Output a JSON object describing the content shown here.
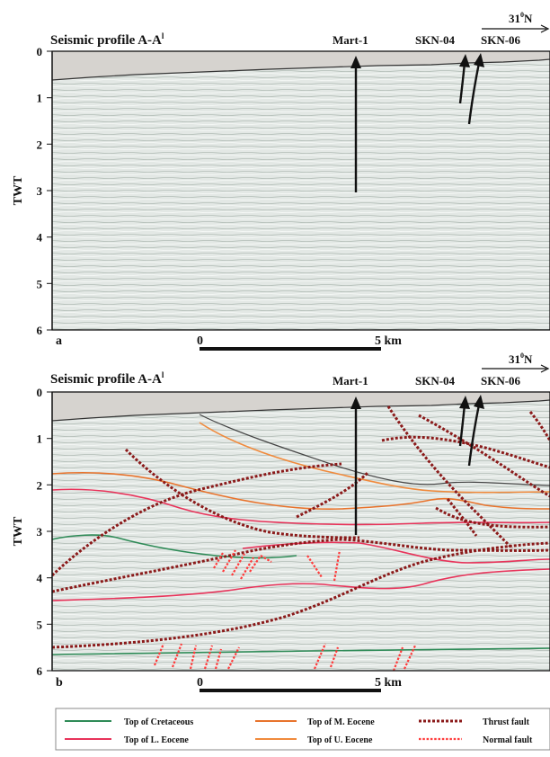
{
  "panels": [
    {
      "letter": "a",
      "title": "Seismic profile A-A",
      "title_prime": "l",
      "wells": [
        "Mart-1",
        "SKN-04",
        "SKN-06"
      ],
      "latitude": "31",
      "latitude_sup": "0",
      "latitude_suffix": "N",
      "scale": {
        "zero": "0",
        "end": "5 km"
      },
      "axis": {
        "label": "TWT",
        "ticks": [
          "0",
          "1",
          "2",
          "3",
          "4",
          "5",
          "6"
        ]
      }
    },
    {
      "letter": "b",
      "title": "Seismic profile A-A",
      "title_prime": "l",
      "wells": [
        "Mart-1",
        "SKN-04",
        "SKN-06"
      ],
      "latitude": "31",
      "latitude_sup": "0",
      "latitude_suffix": "N",
      "scale": {
        "zero": "0",
        "end": "5 km"
      },
      "axis": {
        "label": "TWT",
        "ticks": [
          "0",
          "1",
          "2",
          "3",
          "4",
          "5",
          "6"
        ]
      }
    }
  ],
  "legend": [
    {
      "label": "Top of Cretaceous",
      "color": "#2e8b57",
      "style": "solid"
    },
    {
      "label": "Top of M. Eocene",
      "color": "#e8732c",
      "style": "solid"
    },
    {
      "label": "Thrust fault",
      "color": "#8b1a1a",
      "style": "dotted"
    },
    {
      "label": "Top of L. Eocene",
      "color": "#e8335a",
      "style": "solid"
    },
    {
      "label": "Top of U. Eocene",
      "color": "#f08a3c",
      "style": "solid"
    },
    {
      "label": "Normal fault",
      "color": "#ff3b3b",
      "style": "dotted"
    }
  ],
  "colors": {
    "seismic_bg": "#e3e8e5",
    "overburden": "#d6d3cf",
    "thrust": "#8b1a1a",
    "normal": "#ff3b3b"
  }
}
